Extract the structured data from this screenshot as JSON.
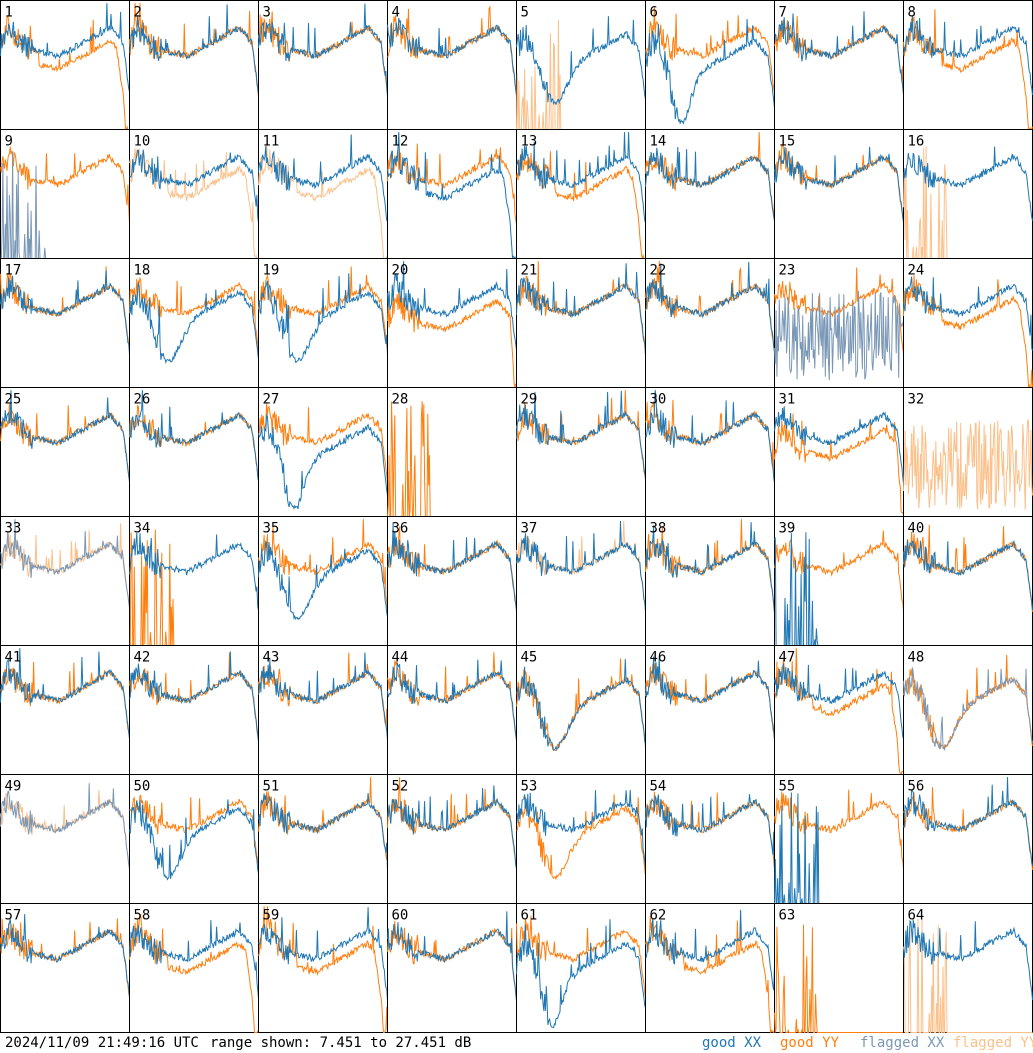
{
  "footer": {
    "timestamp": "2024/11/09 21:49:16 UTC",
    "range_text": "range shown: 7.451 to 27.451 dB"
  },
  "legend": [
    {
      "key": "good-xx",
      "label": "good XX",
      "color": "#1f77b4"
    },
    {
      "key": "good-yy",
      "label": "good YY",
      "color": "#ff7f0e"
    },
    {
      "key": "flagged-xx",
      "label": "flagged XX",
      "color": "#7a97b6"
    },
    {
      "key": "flagged-yy",
      "label": "flagged YY",
      "color": "#fcc08a"
    }
  ],
  "chart_data": {
    "type": "line",
    "grid": {
      "rows": 8,
      "cols": 8
    },
    "ylim": [
      7.451,
      27.451
    ],
    "y_unit": "dB",
    "colors": {
      "xx": "#1f77b4",
      "yy": "#ff7f0e",
      "xx_flagged": "#7a97b6",
      "yy_flagged": "#fcc08a"
    },
    "panels": [
      {
        "id": 1,
        "xx": "good",
        "yy": "good",
        "xx_shape": "normal",
        "yy_shape": "dropped"
      },
      {
        "id": 2,
        "xx": "good",
        "yy": "good",
        "xx_shape": "normal",
        "yy_shape": "normal"
      },
      {
        "id": 3,
        "xx": "good",
        "yy": "good",
        "xx_shape": "normal",
        "yy_shape": "normal"
      },
      {
        "id": 4,
        "xx": "good",
        "yy": "good",
        "xx_shape": "normal",
        "yy_shape": "normal"
      },
      {
        "id": 5,
        "xx": "good",
        "yy": "flagged",
        "xx_shape": "dip",
        "yy_shape": "dead"
      },
      {
        "id": 6,
        "xx": "good",
        "yy": "good",
        "xx_shape": "deep_dip",
        "yy_shape": "normal"
      },
      {
        "id": 7,
        "xx": "good",
        "yy": "good",
        "xx_shape": "normal",
        "yy_shape": "normal"
      },
      {
        "id": 8,
        "xx": "good",
        "yy": "good",
        "xx_shape": "normal",
        "yy_shape": "dropped"
      },
      {
        "id": 9,
        "xx": "flagged",
        "yy": "good",
        "xx_shape": "dead",
        "yy_shape": "normal"
      },
      {
        "id": 10,
        "xx": "good",
        "yy": "flagged",
        "xx_shape": "normal",
        "yy_shape": "dropped"
      },
      {
        "id": 11,
        "xx": "good",
        "yy": "flagged",
        "xx_shape": "normal",
        "yy_shape": "dropped"
      },
      {
        "id": 12,
        "xx": "good",
        "yy": "good",
        "xx_shape": "dropped",
        "yy_shape": "normal"
      },
      {
        "id": 13,
        "xx": "good",
        "yy": "good",
        "xx_shape": "normal",
        "yy_shape": "dropped"
      },
      {
        "id": 14,
        "xx": "good",
        "yy": "good",
        "xx_shape": "normal",
        "yy_shape": "normal"
      },
      {
        "id": 15,
        "xx": "good",
        "yy": "good",
        "xx_shape": "normal",
        "yy_shape": "normal"
      },
      {
        "id": 16,
        "xx": "good",
        "yy": "flagged",
        "xx_shape": "normal",
        "yy_shape": "dead"
      },
      {
        "id": 17,
        "xx": "good",
        "yy": "good",
        "xx_shape": "normal",
        "yy_shape": "normal"
      },
      {
        "id": 18,
        "xx": "good",
        "yy": "good",
        "xx_shape": "dip",
        "yy_shape": "normal"
      },
      {
        "id": 19,
        "xx": "good",
        "yy": "good",
        "xx_shape": "dip",
        "yy_shape": "normal"
      },
      {
        "id": 20,
        "xx": "good",
        "yy": "good",
        "xx_shape": "normal",
        "yy_shape": "low"
      },
      {
        "id": 21,
        "xx": "good",
        "yy": "good",
        "xx_shape": "normal",
        "yy_shape": "normal"
      },
      {
        "id": 22,
        "xx": "good",
        "yy": "good",
        "xx_shape": "normal",
        "yy_shape": "normal"
      },
      {
        "id": 23,
        "xx": "flagged",
        "yy": "good",
        "xx_shape": "noisy",
        "yy_shape": "normal"
      },
      {
        "id": 24,
        "xx": "good",
        "yy": "good",
        "xx_shape": "normal",
        "yy_shape": "dropped"
      },
      {
        "id": 25,
        "xx": "good",
        "yy": "good",
        "xx_shape": "normal",
        "yy_shape": "normal"
      },
      {
        "id": 26,
        "xx": "good",
        "yy": "good",
        "xx_shape": "normal",
        "yy_shape": "normal"
      },
      {
        "id": 27,
        "xx": "good",
        "yy": "good",
        "xx_shape": "deep_dip",
        "yy_shape": "normal"
      },
      {
        "id": 28,
        "xx": "none",
        "yy": "good",
        "xx_shape": "none",
        "yy_shape": "dead"
      },
      {
        "id": 29,
        "xx": "good",
        "yy": "good",
        "xx_shape": "normal",
        "yy_shape": "normal"
      },
      {
        "id": 30,
        "xx": "good",
        "yy": "good",
        "xx_shape": "normal",
        "yy_shape": "normal"
      },
      {
        "id": 31,
        "xx": "good",
        "yy": "good",
        "xx_shape": "normal",
        "yy_shape": "low"
      },
      {
        "id": 32,
        "xx": "none",
        "yy": "flagged",
        "xx_shape": "none",
        "yy_shape": "noisy"
      },
      {
        "id": 33,
        "xx": "flagged",
        "yy": "flagged",
        "xx_shape": "normal",
        "yy_shape": "normal"
      },
      {
        "id": 34,
        "xx": "good",
        "yy": "good",
        "xx_shape": "normal",
        "yy_shape": "dead"
      },
      {
        "id": 35,
        "xx": "good",
        "yy": "good",
        "xx_shape": "dip",
        "yy_shape": "normal"
      },
      {
        "id": 36,
        "xx": "good",
        "yy": "good",
        "xx_shape": "normal",
        "yy_shape": "normal"
      },
      {
        "id": 37,
        "xx": "good",
        "yy": "flagged",
        "xx_shape": "normal",
        "yy_shape": "normal"
      },
      {
        "id": 38,
        "xx": "good",
        "yy": "good",
        "xx_shape": "normal",
        "yy_shape": "normal"
      },
      {
        "id": 39,
        "xx": "good",
        "yy": "good",
        "xx_shape": "dead",
        "yy_shape": "normal"
      },
      {
        "id": 40,
        "xx": "good",
        "yy": "good",
        "xx_shape": "normal",
        "yy_shape": "normal"
      },
      {
        "id": 41,
        "xx": "good",
        "yy": "good",
        "xx_shape": "normal",
        "yy_shape": "normal"
      },
      {
        "id": 42,
        "xx": "good",
        "yy": "good",
        "xx_shape": "normal",
        "yy_shape": "normal"
      },
      {
        "id": 43,
        "xx": "good",
        "yy": "good",
        "xx_shape": "normal",
        "yy_shape": "normal"
      },
      {
        "id": 44,
        "xx": "good",
        "yy": "good",
        "xx_shape": "normal",
        "yy_shape": "normal"
      },
      {
        "id": 45,
        "xx": "good",
        "yy": "good",
        "xx_shape": "dip",
        "yy_shape": "dip"
      },
      {
        "id": 46,
        "xx": "good",
        "yy": "good",
        "xx_shape": "normal",
        "yy_shape": "normal"
      },
      {
        "id": 47,
        "xx": "good",
        "yy": "good",
        "xx_shape": "normal",
        "yy_shape": "dropped"
      },
      {
        "id": 48,
        "xx": "flagged",
        "yy": "good",
        "xx_shape": "dip",
        "yy_shape": "dip"
      },
      {
        "id": 49,
        "xx": "flagged",
        "yy": "flagged",
        "xx_shape": "normal",
        "yy_shape": "normal"
      },
      {
        "id": 50,
        "xx": "good",
        "yy": "good",
        "xx_shape": "dip",
        "yy_shape": "normal"
      },
      {
        "id": 51,
        "xx": "good",
        "yy": "good",
        "xx_shape": "normal",
        "yy_shape": "normal"
      },
      {
        "id": 52,
        "xx": "good",
        "yy": "good",
        "xx_shape": "normal",
        "yy_shape": "normal"
      },
      {
        "id": 53,
        "xx": "good",
        "yy": "good",
        "xx_shape": "normal",
        "yy_shape": "dip"
      },
      {
        "id": 54,
        "xx": "good",
        "yy": "good",
        "xx_shape": "normal",
        "yy_shape": "normal"
      },
      {
        "id": 55,
        "xx": "good",
        "yy": "good",
        "xx_shape": "dead",
        "yy_shape": "normal"
      },
      {
        "id": 56,
        "xx": "good",
        "yy": "good",
        "xx_shape": "normal",
        "yy_shape": "normal"
      },
      {
        "id": 57,
        "xx": "good",
        "yy": "good",
        "xx_shape": "normal",
        "yy_shape": "normal"
      },
      {
        "id": 58,
        "xx": "good",
        "yy": "good",
        "xx_shape": "normal",
        "yy_shape": "dropped"
      },
      {
        "id": 59,
        "xx": "good",
        "yy": "good",
        "xx_shape": "normal",
        "yy_shape": "dropped"
      },
      {
        "id": 60,
        "xx": "good",
        "yy": "good",
        "xx_shape": "normal",
        "yy_shape": "normal"
      },
      {
        "id": 61,
        "xx": "good",
        "yy": "good",
        "xx_shape": "deep_dip",
        "yy_shape": "normal"
      },
      {
        "id": 62,
        "xx": "good",
        "yy": "good",
        "xx_shape": "normal",
        "yy_shape": "dropped"
      },
      {
        "id": 63,
        "xx": "none",
        "yy": "good",
        "xx_shape": "none",
        "yy_shape": "dead"
      },
      {
        "id": 64,
        "xx": "good",
        "yy": "flagged",
        "xx_shape": "normal",
        "yy_shape": "dead"
      }
    ]
  }
}
